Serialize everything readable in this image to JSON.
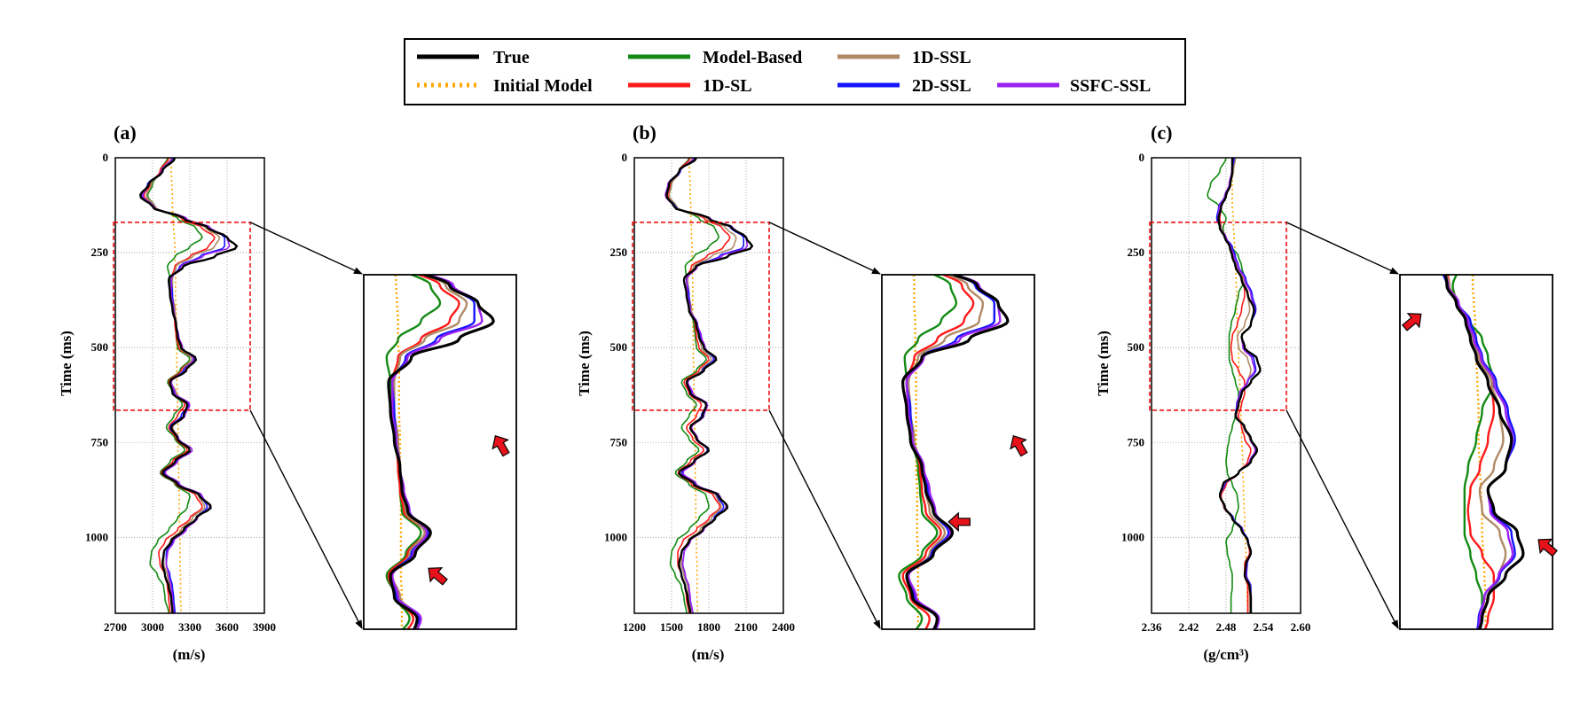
{
  "legend": {
    "entries": [
      {
        "label": "True",
        "color": "#000000",
        "dash": false
      },
      {
        "label": "Initial Model",
        "color": "#ffa500",
        "dash": true
      },
      {
        "label": "Model-Based",
        "color": "#138a13",
        "dash": false
      },
      {
        "label": "1D-SL",
        "color": "#ff1a1a",
        "dash": false
      },
      {
        "label": "1D-SSL",
        "color": "#b08a66",
        "dash": false
      },
      {
        "label": "2D-SSL",
        "color": "#1414ff",
        "dash": false
      },
      {
        "label": "SSFC-SSL",
        "color": "#9a22f0",
        "dash": false
      }
    ]
  },
  "chart_data": [
    {
      "type": "line",
      "panel": "(a)",
      "xlabel": "(m/s)",
      "ylabel": "Time (ms)",
      "xlim": [
        2700,
        3900
      ],
      "xticks": [
        "2700",
        "3000",
        "3300",
        "3600",
        "3900"
      ],
      "ylim": [
        0,
        1200
      ],
      "yticks": [
        "0",
        "250",
        "500",
        "750",
        "1000"
      ],
      "zoom_ylim": [
        170,
        665
      ],
      "zoom_xlim": [
        3000,
        3800
      ],
      "knots_t": [
        0,
        35,
        70,
        100,
        130,
        160,
        185,
        210,
        235,
        260,
        285,
        320,
        360,
        400,
        440,
        470,
        500,
        530,
        560,
        590,
        620,
        650,
        680,
        710,
        740,
        770,
        800,
        830,
        860,
        890,
        920,
        950,
        980,
        1010,
        1040,
        1070,
        1100,
        1130,
        1160,
        1200
      ],
      "initial": [
        3150,
        3150,
        3155,
        3160,
        3160,
        3165,
        3170,
        3175,
        3180,
        3180,
        3185,
        3185,
        3185,
        3190,
        3190,
        3190,
        3195,
        3195,
        3195,
        3195,
        3200,
        3200,
        3200,
        3205,
        3205,
        3205,
        3210,
        3210,
        3210,
        3215,
        3215,
        3215,
        3220,
        3220,
        3220,
        3220,
        3225,
        3225,
        3225,
        3230
      ],
      "true": [
        3180,
        3080,
        2970,
        2900,
        3000,
        3250,
        3450,
        3600,
        3680,
        3500,
        3250,
        3130,
        3140,
        3160,
        3190,
        3200,
        3230,
        3350,
        3270,
        3140,
        3160,
        3280,
        3250,
        3150,
        3200,
        3300,
        3180,
        3080,
        3200,
        3380,
        3470,
        3350,
        3250,
        3150,
        3090,
        3080,
        3100,
        3130,
        3150,
        3160
      ],
      "model": [
        3120,
        3060,
        3000,
        2960,
        3020,
        3200,
        3350,
        3400,
        3300,
        3180,
        3120,
        3140,
        3150,
        3170,
        3180,
        3190,
        3200,
        3300,
        3220,
        3120,
        3170,
        3240,
        3170,
        3110,
        3180,
        3260,
        3140,
        3060,
        3180,
        3300,
        3280,
        3200,
        3130,
        3040,
        2990,
        2980,
        3040,
        3090,
        3100,
        3130
      ],
      "sl": [
        3130,
        3060,
        2980,
        2930,
        3010,
        3230,
        3400,
        3500,
        3450,
        3300,
        3180,
        3150,
        3150,
        3170,
        3180,
        3190,
        3210,
        3320,
        3230,
        3130,
        3170,
        3260,
        3200,
        3130,
        3190,
        3280,
        3160,
        3070,
        3190,
        3350,
        3400,
        3300,
        3200,
        3100,
        3050,
        3060,
        3100,
        3120,
        3130,
        3140
      ],
      "ssl1": [
        3150,
        3070,
        2990,
        2950,
        3020,
        3250,
        3430,
        3540,
        3500,
        3320,
        3190,
        3160,
        3160,
        3180,
        3190,
        3200,
        3220,
        3320,
        3240,
        3150,
        3190,
        3290,
        3250,
        3160,
        3210,
        3320,
        3200,
        3100,
        3210,
        3370,
        3420,
        3320,
        3230,
        3140,
        3090,
        3090,
        3120,
        3140,
        3150,
        3160
      ],
      "ssl2": [
        3170,
        3080,
        2960,
        2910,
        3000,
        3260,
        3460,
        3580,
        3580,
        3380,
        3220,
        3150,
        3160,
        3170,
        3190,
        3210,
        3240,
        3340,
        3250,
        3140,
        3170,
        3290,
        3230,
        3140,
        3200,
        3300,
        3190,
        3090,
        3210,
        3390,
        3440,
        3350,
        3260,
        3160,
        3110,
        3110,
        3140,
        3160,
        3170,
        3180
      ],
      "ssfc": [
        3160,
        3070,
        2970,
        2920,
        3010,
        3270,
        3470,
        3600,
        3620,
        3400,
        3230,
        3150,
        3150,
        3170,
        3190,
        3210,
        3240,
        3330,
        3260,
        3150,
        3180,
        3300,
        3260,
        3150,
        3210,
        3320,
        3200,
        3100,
        3220,
        3400,
        3460,
        3360,
        3270,
        3170,
        3120,
        3110,
        3130,
        3150,
        3160,
        3170
      ]
    },
    {
      "type": "line",
      "panel": "(b)",
      "xlabel": "(m/s)",
      "ylabel": "Time (ms)",
      "xlim": [
        1200,
        2400
      ],
      "xticks": [
        "1200",
        "1500",
        "1800",
        "2100",
        "2400"
      ],
      "ylim": [
        0,
        1200
      ],
      "yticks": [
        "0",
        "250",
        "500",
        "750",
        "1000"
      ],
      "zoom_ylim": [
        170,
        665
      ],
      "zoom_xlim": [
        1490,
        2290
      ],
      "knots_t": [
        0,
        35,
        70,
        100,
        130,
        160,
        185,
        210,
        235,
        260,
        285,
        320,
        360,
        400,
        440,
        470,
        500,
        530,
        560,
        590,
        620,
        650,
        680,
        710,
        740,
        770,
        800,
        830,
        860,
        890,
        920,
        950,
        980,
        1010,
        1040,
        1070,
        1100,
        1130,
        1160,
        1200
      ],
      "initial": [
        1640,
        1645,
        1650,
        1650,
        1655,
        1655,
        1660,
        1660,
        1665,
        1665,
        1665,
        1670,
        1670,
        1670,
        1670,
        1675,
        1675,
        1675,
        1680,
        1680,
        1680,
        1680,
        1685,
        1685,
        1685,
        1690,
        1690,
        1690,
        1690,
        1695,
        1695,
        1695,
        1700,
        1700,
        1700,
        1705,
        1705,
        1705,
        1705,
        1710
      ],
      "true": [
        1700,
        1560,
        1480,
        1460,
        1520,
        1800,
        1990,
        2100,
        2150,
        1950,
        1700,
        1600,
        1620,
        1640,
        1700,
        1720,
        1760,
        1860,
        1760,
        1620,
        1650,
        1780,
        1750,
        1650,
        1700,
        1800,
        1680,
        1560,
        1680,
        1880,
        1950,
        1850,
        1750,
        1640,
        1580,
        1560,
        1580,
        1610,
        1630,
        1650
      ],
      "model": [
        1640,
        1560,
        1500,
        1480,
        1540,
        1720,
        1850,
        1880,
        1800,
        1680,
        1610,
        1620,
        1630,
        1650,
        1680,
        1690,
        1700,
        1780,
        1700,
        1580,
        1620,
        1700,
        1640,
        1580,
        1640,
        1720,
        1620,
        1530,
        1640,
        1780,
        1800,
        1720,
        1640,
        1540,
        1500,
        1490,
        1530,
        1580,
        1600,
        1620
      ],
      "sl": [
        1650,
        1560,
        1490,
        1470,
        1530,
        1760,
        1910,
        1970,
        1920,
        1780,
        1660,
        1620,
        1630,
        1650,
        1690,
        1700,
        1720,
        1800,
        1720,
        1600,
        1640,
        1740,
        1700,
        1620,
        1670,
        1760,
        1650,
        1550,
        1660,
        1840,
        1890,
        1800,
        1700,
        1590,
        1550,
        1550,
        1580,
        1610,
        1620,
        1640
      ],
      "ssl1": [
        1670,
        1570,
        1500,
        1480,
        1540,
        1780,
        1940,
        2020,
        2000,
        1820,
        1680,
        1630,
        1640,
        1660,
        1700,
        1720,
        1740,
        1820,
        1740,
        1620,
        1670,
        1780,
        1760,
        1660,
        1710,
        1800,
        1690,
        1590,
        1690,
        1860,
        1900,
        1820,
        1730,
        1630,
        1580,
        1580,
        1600,
        1630,
        1640,
        1660
      ],
      "ssl2": [
        1690,
        1570,
        1480,
        1460,
        1530,
        1800,
        1980,
        2080,
        2080,
        1880,
        1700,
        1620,
        1640,
        1650,
        1710,
        1730,
        1760,
        1840,
        1750,
        1620,
        1660,
        1780,
        1740,
        1650,
        1700,
        1790,
        1680,
        1580,
        1690,
        1870,
        1920,
        1840,
        1750,
        1640,
        1600,
        1590,
        1610,
        1640,
        1650,
        1670
      ],
      "ssfc": [
        1680,
        1560,
        1470,
        1450,
        1520,
        1810,
        2000,
        2100,
        2110,
        1900,
        1710,
        1620,
        1630,
        1650,
        1710,
        1740,
        1770,
        1850,
        1760,
        1630,
        1670,
        1790,
        1760,
        1660,
        1710,
        1800,
        1690,
        1590,
        1700,
        1890,
        1940,
        1850,
        1760,
        1650,
        1600,
        1590,
        1610,
        1640,
        1650,
        1670
      ]
    },
    {
      "type": "line",
      "panel": "(c)",
      "xlabel": "(g/cm³)",
      "ylabel": "Time (ms)",
      "xlim": [
        2.36,
        2.6
      ],
      "xticks": [
        "2.36",
        "2.42",
        "2.48",
        "2.54",
        "2.60"
      ],
      "ylim": [
        0,
        1200
      ],
      "yticks": [
        "0",
        "250",
        "500",
        "750",
        "1000"
      ],
      "zoom_ylim": [
        170,
        665
      ],
      "zoom_xlim": [
        2.43,
        2.56
      ],
      "knots_t": [
        0,
        35,
        70,
        100,
        130,
        160,
        185,
        210,
        235,
        260,
        285,
        320,
        360,
        400,
        440,
        470,
        500,
        530,
        560,
        590,
        620,
        650,
        680,
        710,
        740,
        770,
        800,
        830,
        860,
        890,
        920,
        950,
        980,
        1010,
        1040,
        1070,
        1100,
        1130,
        1160,
        1200
      ],
      "initial": [
        2.49,
        2.49,
        2.49,
        2.49,
        2.49,
        2.492,
        2.492,
        2.493,
        2.494,
        2.495,
        2.495,
        2.496,
        2.497,
        2.497,
        2.498,
        2.499,
        2.5,
        2.5,
        2.501,
        2.502,
        2.503,
        2.503,
        2.504,
        2.505,
        2.505,
        2.506,
        2.507,
        2.507,
        2.508,
        2.508,
        2.509,
        2.51,
        2.51,
        2.511,
        2.512,
        2.512,
        2.513,
        2.514,
        2.514,
        2.515
      ],
      "true": [
        2.49,
        2.49,
        2.487,
        2.48,
        2.472,
        2.468,
        2.47,
        2.478,
        2.486,
        2.49,
        2.495,
        2.505,
        2.515,
        2.525,
        2.52,
        2.505,
        2.51,
        2.53,
        2.535,
        2.52,
        2.505,
        2.5,
        2.495,
        2.51,
        2.52,
        2.53,
        2.52,
        2.5,
        2.475,
        2.47,
        2.478,
        2.49,
        2.505,
        2.515,
        2.52,
        2.512,
        2.51,
        2.518,
        2.52,
        2.52
      ],
      "model": [
        2.48,
        2.47,
        2.455,
        2.45,
        2.47,
        2.48,
        2.475,
        2.478,
        2.49,
        2.5,
        2.505,
        2.51,
        2.5,
        2.495,
        2.488,
        2.485,
        2.485,
        2.485,
        2.49,
        2.495,
        2.5,
        2.5,
        2.495,
        2.49,
        2.485,
        2.482,
        2.48,
        2.482,
        2.49,
        2.498,
        2.5,
        2.495,
        2.49,
        2.48,
        2.482,
        2.486,
        2.49,
        2.49,
        2.488,
        2.488
      ],
      "sl": [
        2.492,
        2.49,
        2.486,
        2.48,
        2.472,
        2.47,
        2.472,
        2.48,
        2.488,
        2.493,
        2.498,
        2.508,
        2.51,
        2.505,
        2.498,
        2.49,
        2.488,
        2.49,
        2.5,
        2.51,
        2.51,
        2.505,
        2.5,
        2.505,
        2.51,
        2.52,
        2.515,
        2.5,
        2.48,
        2.472,
        2.476,
        2.49,
        2.505,
        2.515,
        2.518,
        2.51,
        2.51,
        2.515,
        2.515,
        2.515
      ],
      "ssl1": [
        2.495,
        2.492,
        2.487,
        2.48,
        2.47,
        2.468,
        2.472,
        2.48,
        2.488,
        2.492,
        2.497,
        2.508,
        2.515,
        2.518,
        2.51,
        2.498,
        2.5,
        2.515,
        2.52,
        2.515,
        2.505,
        2.5,
        2.497,
        2.508,
        2.518,
        2.528,
        2.52,
        2.5,
        2.478,
        2.47,
        2.476,
        2.49,
        2.505,
        2.515,
        2.52,
        2.512,
        2.512,
        2.518,
        2.518,
        2.518
      ],
      "ssl2": [
        2.493,
        2.49,
        2.486,
        2.478,
        2.468,
        2.465,
        2.47,
        2.48,
        2.49,
        2.495,
        2.5,
        2.512,
        2.522,
        2.528,
        2.52,
        2.505,
        2.508,
        2.525,
        2.528,
        2.515,
        2.502,
        2.497,
        2.495,
        2.51,
        2.52,
        2.528,
        2.518,
        2.5,
        2.478,
        2.47,
        2.478,
        2.492,
        2.507,
        2.516,
        2.52,
        2.514,
        2.513,
        2.52,
        2.52,
        2.52
      ],
      "ssfc": [
        2.491,
        2.489,
        2.485,
        2.478,
        2.469,
        2.467,
        2.471,
        2.48,
        2.488,
        2.493,
        2.499,
        2.51,
        2.52,
        2.526,
        2.52,
        2.505,
        2.507,
        2.522,
        2.526,
        2.514,
        2.502,
        2.498,
        2.496,
        2.509,
        2.519,
        2.527,
        2.518,
        2.5,
        2.477,
        2.47,
        2.477,
        2.491,
        2.506,
        2.515,
        2.52,
        2.513,
        2.512,
        2.519,
        2.52,
        2.52
      ]
    }
  ]
}
